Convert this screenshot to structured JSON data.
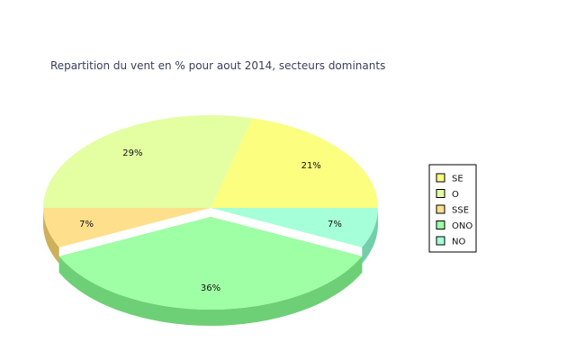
{
  "chart_data": {
    "type": "pie",
    "title": "Repartition du vent en % pour aout 2014, secteurs dominants",
    "categories": [
      "SE",
      "O",
      "SSE",
      "ONO",
      "NO"
    ],
    "values": [
      21,
      29,
      7,
      36,
      7
    ],
    "labels": [
      "21%",
      "29%",
      "7%",
      "36%",
      "7%"
    ],
    "colors": [
      "#fbfe7f",
      "#e4fea2",
      "#fedf8b",
      "#9fffa5",
      "#a5ffd8"
    ],
    "side_colors": [
      "#cfd24f",
      "#b6cd72",
      "#cdb05a",
      "#6ed076",
      "#72cfaa"
    ],
    "exploded": "ONO",
    "legend_position": "right",
    "style": "3d"
  }
}
